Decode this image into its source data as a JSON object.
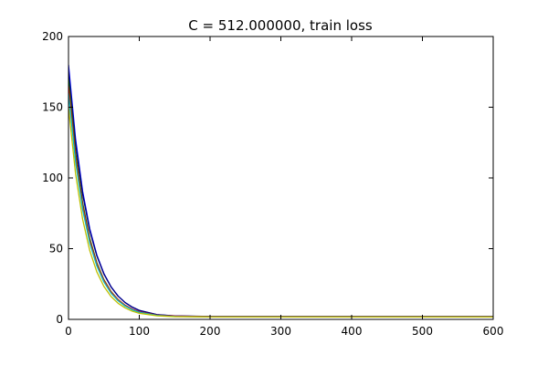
{
  "chart_data": {
    "type": "line",
    "title": "C = 512.000000, train loss",
    "xlabel": "",
    "ylabel": "",
    "xlim": [
      0,
      600
    ],
    "ylim": [
      0,
      200
    ],
    "xticks": [
      0,
      100,
      200,
      300,
      400,
      500,
      600
    ],
    "yticks": [
      0,
      50,
      100,
      150,
      200
    ],
    "grid": false,
    "legend": "none",
    "x": [
      0,
      10,
      20,
      30,
      40,
      50,
      60,
      70,
      80,
      90,
      100,
      125,
      150,
      200,
      300,
      400,
      500,
      600
    ],
    "series": [
      {
        "color": "#0000ff",
        "values": [
          180,
          127.5,
          90.4,
          64.1,
          45.5,
          32.4,
          23.1,
          16.5,
          11.9,
          8.6,
          6.3,
          3.3,
          2.4,
          2.0,
          2.0,
          2.0,
          2.0,
          2.0
        ]
      },
      {
        "color": "#00007f",
        "values": [
          175,
          124.4,
          88.4,
          62.9,
          44.9,
          32.1,
          23.0,
          16.5,
          11.9,
          8.7,
          6.4,
          3.4,
          2.5,
          2.1,
          2.1,
          2.1,
          2.1,
          2.1
        ]
      },
      {
        "color": "#008000",
        "values": [
          170,
          118.2,
          82.3,
          57.4,
          40.1,
          28.1,
          19.8,
          14.0,
          10.0,
          7.2,
          5.3,
          2.9,
          2.1,
          1.8,
          1.8,
          1.8,
          1.8,
          1.8
        ]
      },
      {
        "color": "#ff0000",
        "values": [
          165,
          114.9,
          80.1,
          55.9,
          39.1,
          27.5,
          19.4,
          13.8,
          9.9,
          7.2,
          5.3,
          3.0,
          2.3,
          2.0,
          2.0,
          2.0,
          2.0,
          2.0
        ]
      },
      {
        "color": "#00bfbf",
        "values": [
          160,
          111.4,
          77.6,
          54.1,
          37.8,
          26.5,
          18.6,
          13.2,
          9.4,
          6.8,
          5.0,
          2.8,
          2.1,
          1.8,
          1.8,
          1.8,
          1.8,
          1.8
        ]
      },
      {
        "color": "#bfbf00",
        "values": [
          150,
          102.9,
          70.7,
          48.7,
          33.6,
          23.3,
          16.2,
          11.4,
          8.1,
          5.8,
          4.3,
          2.5,
          1.9,
          1.7,
          1.7,
          1.7,
          1.7,
          1.7
        ]
      }
    ]
  }
}
